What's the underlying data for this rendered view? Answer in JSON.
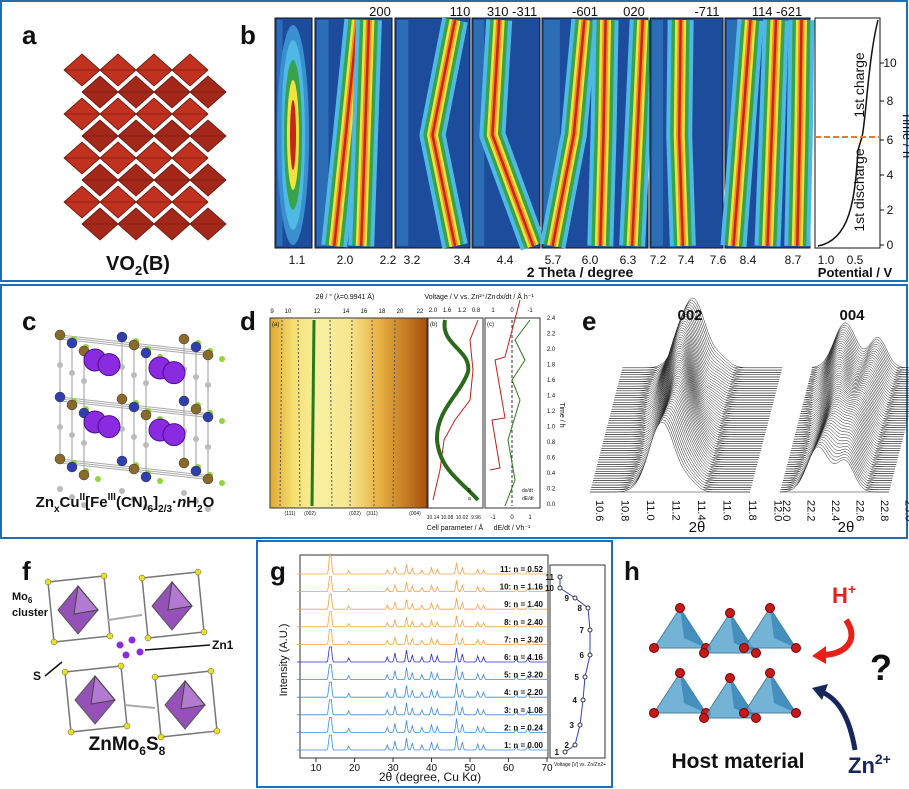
{
  "a": {
    "label": "a",
    "formula": {
      "base": "VO",
      "sub": "2",
      "tail": "(B)"
    }
  },
  "b": {
    "label": "b",
    "peaks": [
      "200",
      "110",
      "310 -311",
      "-601",
      "020",
      "-711",
      "114 -621"
    ],
    "xticks": [
      "1.1",
      "2.0",
      "2.2",
      "3.2",
      "3.4",
      "4.4",
      "5.7",
      "6.0",
      "6.3",
      "7.2",
      "7.4",
      "7.6",
      "8.4",
      "8.7"
    ],
    "xlabel": "2 Theta / degree",
    "potential_ticks": [
      "1.0",
      "0.5"
    ],
    "potential_label": "Potential / V",
    "time_ticks": [
      "0",
      "2",
      "4",
      "6",
      "8",
      "10"
    ],
    "time_label": "Time / h",
    "charge": "1st charge",
    "discharge": "1st discharge"
  },
  "c": {
    "label": "c",
    "formula": [
      "Zn",
      "x",
      "Cu",
      "II",
      "[Fe",
      "III",
      "(CN)",
      "6",
      "]",
      "2/3",
      "·",
      "n",
      "H",
      "2",
      "O"
    ]
  },
  "d": {
    "label": "d",
    "top_axis": "2θ / ° (λ=0.9941 Å)",
    "top_ticks": [
      "9",
      "10",
      "12",
      "14",
      "16",
      "18",
      "20",
      "22"
    ],
    "voltage_axis": "Voltage / V vs. Zn²⁺/Zn",
    "voltage_ticks": [
      "2.0",
      "1.6",
      "1.2",
      "0.8"
    ],
    "rate_axis": "dx/dt / Å h⁻¹",
    "rate_ticks": [
      "1",
      "0",
      "-1"
    ],
    "cell_axis": "Cell parameter / Å",
    "cell_ticks": [
      "10.14",
      "10.08",
      "10.02",
      "9.96"
    ],
    "de_axis": "dE/dt / Vh⁻¹",
    "de_ticks": [
      "-1",
      "0",
      "1"
    ],
    "time_axis": "Time / h",
    "time_ticks": [
      "0.0",
      "0.2",
      "0.4",
      "0.6",
      "0.8",
      "1.0",
      "1.2",
      "1.4",
      "1.6",
      "1.8",
      "2.0",
      "2.2",
      "2.4"
    ],
    "subpanels": [
      "(a)",
      "(b)",
      "(c)"
    ],
    "legend_b": [
      "E",
      "a"
    ],
    "legend_c": [
      "dx/dt",
      "dE/dt"
    ],
    "hkl": [
      "(111)",
      "(002)",
      "(022)",
      "(311)",
      "(004)"
    ]
  },
  "e": {
    "label": "e",
    "peaks": [
      "002",
      "004"
    ],
    "ticks_left": [
      "10.6",
      "10.8",
      "11.0",
      "11.2",
      "11.4",
      "11.6",
      "11.8",
      "12.0"
    ],
    "ticks_right": [
      "22.0",
      "22.2",
      "22.4",
      "22.6",
      "22.8",
      "23.0"
    ],
    "xlabel": "2θ"
  },
  "f": {
    "label": "f",
    "cluster": [
      "Mo",
      "6"
    ],
    "cluster_word": "cluster",
    "s": "S",
    "zn": "Zn1",
    "formula": [
      "ZnMo",
      "6",
      "S",
      "8"
    ]
  },
  "g": {
    "label": "g",
    "traces": [
      "11: n = 0.52",
      "10: n = 1.16",
      "9: n = 1.40",
      "8: n = 2.40",
      "7: n = 3.20",
      "6: n = 4.16",
      "5: n = 3.20",
      "4: n = 2.20",
      "3: n = 1.08",
      "2: n = 0.24",
      "1: n = 0.00"
    ],
    "ylabel": "Intensity (A.U.)",
    "xticks": [
      "10",
      "20",
      "30",
      "40",
      "50",
      "60",
      "70"
    ],
    "xlabel": "2θ (degree, Cu Kα)",
    "side_label": "Voltage [V] vs. Zn/Zn2+",
    "points": [
      "1",
      "2",
      "3",
      "4",
      "5",
      "6",
      "7",
      "8",
      "9",
      "10",
      "11"
    ]
  },
  "h": {
    "label": "h",
    "proton": [
      "H",
      "+"
    ],
    "question": "?",
    "zinc": [
      "Zn",
      "2+"
    ],
    "host": "Host material"
  }
}
